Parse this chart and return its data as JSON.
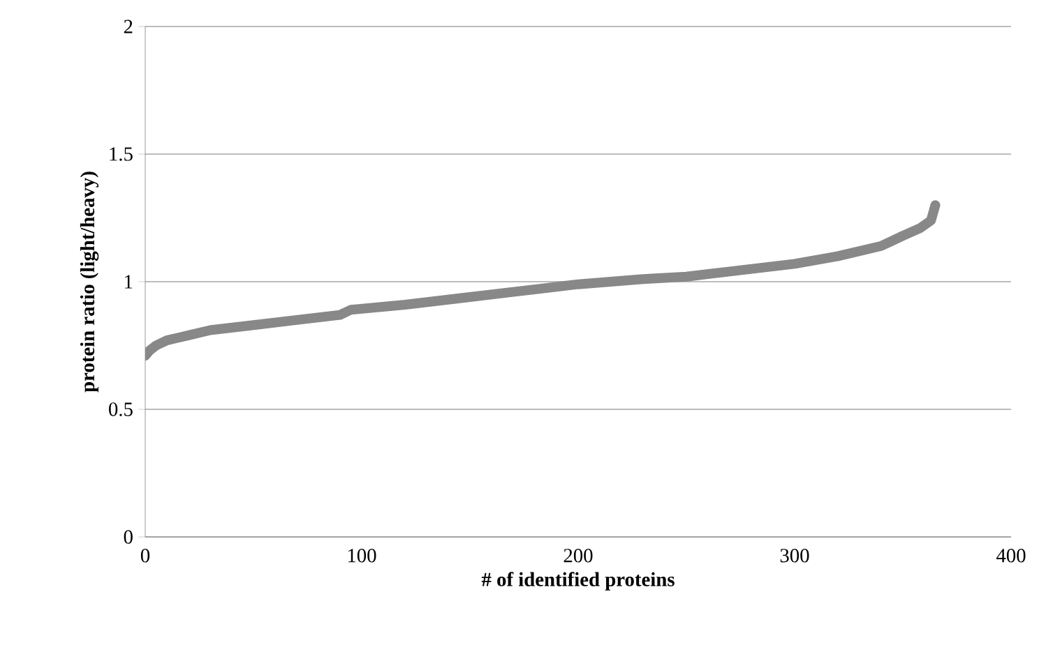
{
  "chart_data": {
    "type": "line",
    "xlabel": "# of identified proteins",
    "ylabel": "protein ratio (light/heavy)",
    "xlim": [
      0,
      400
    ],
    "xticks": [
      0,
      100,
      200,
      300,
      400
    ],
    "ylim": [
      0,
      2
    ],
    "yticks": [
      0,
      0.5,
      1,
      1.5,
      2
    ],
    "grid": "y",
    "series": [
      {
        "color": "#888888",
        "x": [
          0,
          2,
          5,
          10,
          20,
          30,
          50,
          70,
          90,
          95,
          120,
          150,
          170,
          200,
          230,
          250,
          270,
          300,
          320,
          340,
          350,
          358,
          363,
          365
        ],
        "values": [
          0.71,
          0.73,
          0.75,
          0.77,
          0.79,
          0.81,
          0.83,
          0.85,
          0.87,
          0.89,
          0.91,
          0.94,
          0.96,
          0.99,
          1.01,
          1.02,
          1.04,
          1.07,
          1.1,
          1.14,
          1.18,
          1.21,
          1.24,
          1.3
        ]
      }
    ]
  }
}
